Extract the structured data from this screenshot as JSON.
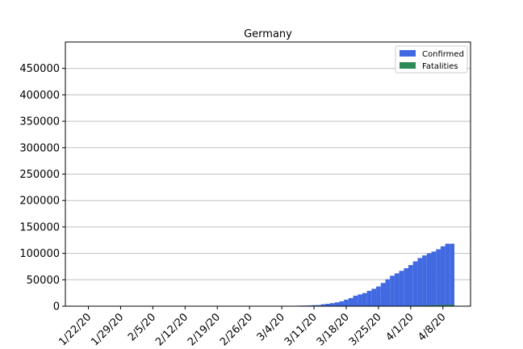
{
  "chart_data": {
    "type": "bar",
    "title": "Germany",
    "xlabel": "",
    "ylabel": "",
    "ylim": [
      0,
      500000
    ],
    "grid": "horizontal",
    "legend_placement": "top-right",
    "x_tick_labels": [
      "1/22/20",
      "1/29/20",
      "2/5/20",
      "2/12/20",
      "2/19/20",
      "2/26/20",
      "3/4/20",
      "3/11/20",
      "3/18/20",
      "3/25/20",
      "4/1/20",
      "4/8/20"
    ],
    "y_tick_labels": [
      "0",
      "50000",
      "100000",
      "150000",
      "200000",
      "250000",
      "300000",
      "350000",
      "400000",
      "450000"
    ],
    "y_ticks": [
      0,
      50000,
      100000,
      150000,
      200000,
      250000,
      300000,
      350000,
      400000,
      450000
    ],
    "categories": [
      "1/22/20",
      "1/23/20",
      "1/24/20",
      "1/25/20",
      "1/26/20",
      "1/27/20",
      "1/28/20",
      "1/29/20",
      "1/30/20",
      "1/31/20",
      "2/1/20",
      "2/2/20",
      "2/3/20",
      "2/4/20",
      "2/5/20",
      "2/6/20",
      "2/7/20",
      "2/8/20",
      "2/9/20",
      "2/10/20",
      "2/11/20",
      "2/12/20",
      "2/13/20",
      "2/14/20",
      "2/15/20",
      "2/16/20",
      "2/17/20",
      "2/18/20",
      "2/19/20",
      "2/20/20",
      "2/21/20",
      "2/22/20",
      "2/23/20",
      "2/24/20",
      "2/25/20",
      "2/26/20",
      "2/27/20",
      "2/28/20",
      "2/29/20",
      "3/1/20",
      "3/2/20",
      "3/3/20",
      "3/4/20",
      "3/5/20",
      "3/6/20",
      "3/7/20",
      "3/8/20",
      "3/9/20",
      "3/10/20",
      "3/11/20",
      "3/12/20",
      "3/13/20",
      "3/14/20",
      "3/15/20",
      "3/16/20",
      "3/17/20",
      "3/18/20",
      "3/19/20",
      "3/20/20",
      "3/21/20",
      "3/22/20",
      "3/23/20",
      "3/24/20",
      "3/25/20",
      "3/26/20",
      "3/27/20",
      "3/28/20",
      "3/29/20",
      "3/30/20",
      "3/31/20",
      "4/1/20",
      "4/2/20",
      "4/3/20",
      "4/4/20",
      "4/5/20",
      "4/6/20",
      "4/7/20",
      "4/8/20",
      "4/9/20",
      "4/10/20"
    ],
    "series": [
      {
        "name": "Confirmed",
        "color": "#4169e1",
        "values": [
          0,
          0,
          0,
          0,
          0,
          1,
          4,
          4,
          4,
          5,
          8,
          10,
          12,
          12,
          12,
          12,
          13,
          13,
          14,
          14,
          16,
          16,
          16,
          16,
          16,
          16,
          16,
          16,
          16,
          16,
          16,
          16,
          16,
          16,
          17,
          27,
          46,
          48,
          79,
          130,
          159,
          196,
          262,
          482,
          670,
          799,
          1040,
          1176,
          1457,
          1908,
          2078,
          3675,
          4585,
          5795,
          7272,
          9257,
          12327,
          15320,
          19848,
          22213,
          24873,
          29056,
          32986,
          37323,
          43938,
          50871,
          57695,
          62095,
          66885,
          71808,
          77872,
          84794,
          91159,
          96092,
          100123,
          103374,
          107663,
          113296,
          118181,
          118235
        ]
      },
      {
        "name": "Fatalities",
        "color": "#2e8b57",
        "values": [
          0,
          0,
          0,
          0,
          0,
          0,
          0,
          0,
          0,
          0,
          0,
          0,
          0,
          0,
          0,
          0,
          0,
          0,
          0,
          0,
          0,
          0,
          0,
          0,
          0,
          0,
          0,
          0,
          0,
          0,
          0,
          0,
          0,
          0,
          0,
          0,
          0,
          0,
          0,
          0,
          0,
          0,
          0,
          0,
          0,
          0,
          0,
          2,
          2,
          3,
          3,
          7,
          9,
          11,
          17,
          24,
          28,
          44,
          67,
          84,
          94,
          123,
          157,
          206,
          267,
          342,
          433,
          533,
          645,
          775,
          920,
          1107,
          1275,
          1444,
          1584,
          1810,
          2016,
          2349,
          2607,
          2767
        ]
      }
    ]
  }
}
